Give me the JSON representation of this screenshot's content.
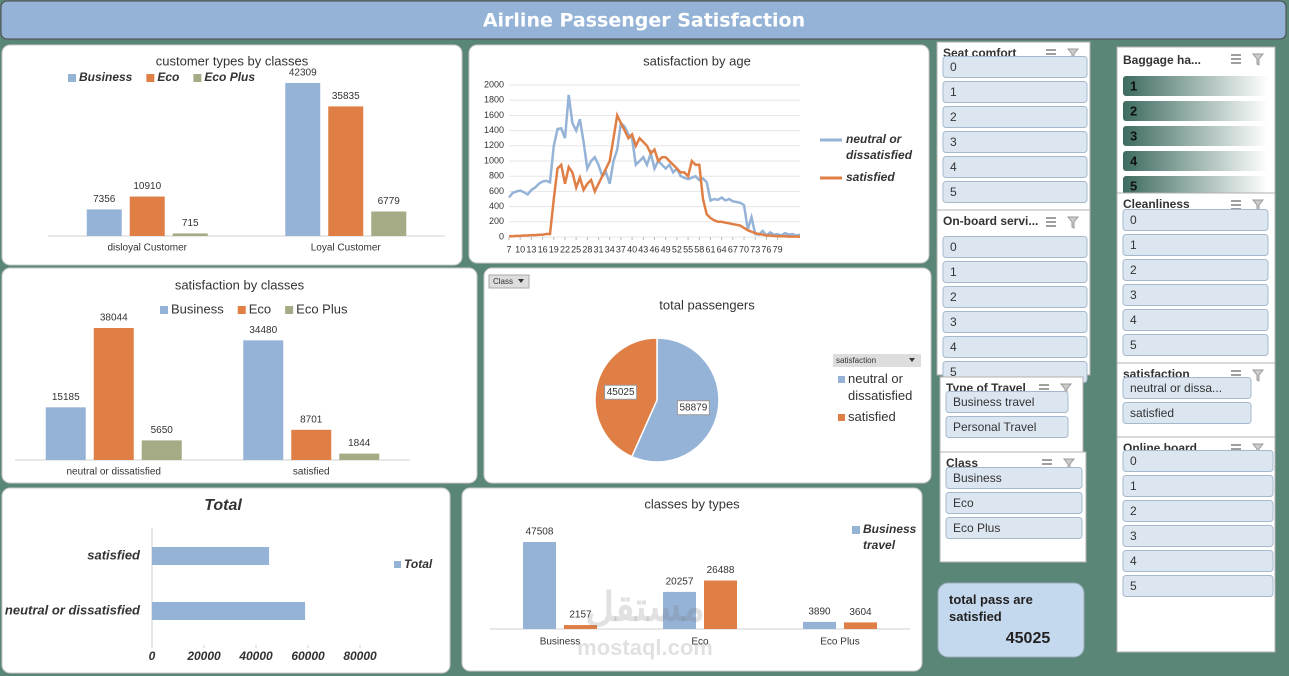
{
  "header": {
    "title": "Airline Passenger Satisfaction"
  },
  "chart_data": [
    {
      "type": "bar",
      "title": "customer  types by classes",
      "categories": [
        "disloyal Customer",
        "Loyal Customer"
      ],
      "series": [
        {
          "name": "Business",
          "color": "#95b3d7",
          "values": [
            7356,
            42309
          ]
        },
        {
          "name": "Eco",
          "color": "#e07f45",
          "values": [
            10910,
            35835
          ]
        },
        {
          "name": "Eco Plus",
          "color": "#a5ab84",
          "values": [
            715,
            6779
          ]
        }
      ]
    },
    {
      "type": "line",
      "title": "satisfaction by age",
      "x": [
        7,
        8,
        9,
        10,
        11,
        12,
        13,
        14,
        15,
        16,
        17,
        18,
        19,
        20,
        21,
        22,
        23,
        24,
        25,
        26,
        27,
        28,
        29,
        30,
        31,
        32,
        33,
        34,
        35,
        36,
        37,
        38,
        39,
        40,
        41,
        42,
        43,
        44,
        45,
        46,
        47,
        48,
        49,
        50,
        51,
        52,
        53,
        54,
        55,
        56,
        57,
        58,
        59,
        60,
        61,
        62,
        63,
        64,
        65,
        66,
        67,
        68,
        69,
        70,
        71,
        72,
        73,
        74,
        75,
        76,
        77,
        78,
        79,
        80,
        81,
        82,
        83,
        84,
        85
      ],
      "series": [
        {
          "name": "neutral or dissatisfied",
          "color": "#95b3d7",
          "values": [
            520,
            580,
            600,
            610,
            590,
            560,
            620,
            650,
            700,
            730,
            740,
            720,
            1200,
            1420,
            1430,
            1300,
            1870,
            1500,
            1400,
            1550,
            1250,
            900,
            1000,
            1050,
            950,
            800,
            850,
            700,
            1000,
            1150,
            1500,
            1450,
            1350,
            1300,
            950,
            1000,
            1050,
            950,
            1100,
            900,
            1000,
            950,
            900,
            950,
            850,
            900,
            800,
            780,
            760,
            780,
            800,
            750,
            770,
            720,
            480,
            500,
            490,
            520,
            480,
            500,
            470,
            460,
            450,
            420,
            100,
            260,
            40,
            30,
            80,
            20,
            60,
            30,
            40,
            20,
            50,
            30,
            40,
            20,
            30
          ]
        },
        {
          "name": "satisfied",
          "color": "#e07f45",
          "values": [
            10,
            10,
            15,
            15,
            20,
            20,
            25,
            25,
            30,
            30,
            40,
            40,
            500,
            900,
            950,
            700,
            920,
            850,
            650,
            780,
            620,
            700,
            750,
            600,
            700,
            800,
            900,
            1000,
            1300,
            1600,
            1500,
            1400,
            1300,
            1350,
            1200,
            1300,
            1250,
            1200,
            1100,
            1150,
            1000,
            1050,
            1050,
            1000,
            950,
            900,
            850,
            850,
            800,
            1000,
            950,
            950,
            500,
            300,
            250,
            220,
            200,
            200,
            190,
            180,
            170,
            160,
            150,
            120,
            90,
            70,
            50,
            40,
            30,
            20,
            20,
            15,
            10,
            10,
            10,
            5,
            5,
            5,
            5
          ]
        }
      ],
      "xlim": [
        7,
        85
      ],
      "ylim": [
        0,
        2000
      ],
      "xticks": [
        7,
        10,
        13,
        16,
        19,
        22,
        25,
        28,
        31,
        34,
        37,
        40,
        43,
        46,
        49,
        52,
        55,
        58,
        61,
        64,
        67,
        70,
        73,
        76,
        79
      ],
      "yticks": [
        0,
        200,
        400,
        600,
        800,
        1000,
        1200,
        1400,
        1600,
        1800,
        2000
      ],
      "grid": true
    },
    {
      "type": "bar",
      "title": "satisfaction by classes",
      "categories": [
        "neutral or dissatisfied",
        "satisfied"
      ],
      "series": [
        {
          "name": "Business",
          "color": "#95b3d7",
          "values": [
            15185,
            34480
          ]
        },
        {
          "name": "Eco",
          "color": "#e07f45",
          "values": [
            38044,
            8701
          ]
        },
        {
          "name": "Eco Plus",
          "color": "#a5ab84",
          "values": [
            5650,
            1844
          ]
        }
      ]
    },
    {
      "type": "pie",
      "title": "total passengers",
      "filter_label": "Class",
      "legend_title": "satisfaction",
      "categories": [
        "neutral or dissatisfied",
        "satisfied"
      ],
      "values": [
        58879,
        45025
      ],
      "colors": [
        "#95b3d7",
        "#e07f45"
      ]
    },
    {
      "type": "hbar",
      "title": "Total",
      "categories": [
        "satisfied",
        "neutral or dissatisfied"
      ],
      "series": [
        {
          "name": "Total",
          "color": "#95b3d7",
          "values": [
            45025,
            58879
          ]
        }
      ],
      "xlim": [
        0,
        80000
      ],
      "xticks": [
        0,
        20000,
        40000,
        60000,
        80000
      ]
    },
    {
      "type": "bar",
      "title": "classes by types",
      "categories": [
        "Business",
        "Eco",
        "Eco Plus"
      ],
      "series": [
        {
          "name": "Business travel",
          "color": "#95b3d7",
          "values": [
            47508,
            20257,
            3890
          ]
        },
        {
          "color": "#e07f45",
          "values": [
            2157,
            26488,
            3604
          ]
        }
      ]
    }
  ],
  "slicers": [
    {
      "title": "Seat comfort",
      "items": [
        "0",
        "1",
        "2",
        "3",
        "4",
        "5"
      ]
    },
    {
      "title": "Baggage ha...",
      "items": [
        "1",
        "2",
        "3",
        "4",
        "5"
      ]
    },
    {
      "title": "On-board servi...",
      "items": [
        "0",
        "1",
        "2",
        "3",
        "4",
        "5"
      ]
    },
    {
      "title": "Cleanliness",
      "items": [
        "0",
        "1",
        "2",
        "3",
        "4",
        "5"
      ]
    },
    {
      "title": "Type of Travel",
      "items": [
        "Business travel",
        "Personal Travel"
      ]
    },
    {
      "title": "satisfaction",
      "items": [
        "neutral or dissa...",
        "satisfied"
      ]
    },
    {
      "title": "Class",
      "items": [
        "Business",
        "Eco",
        "Eco Plus"
      ]
    },
    {
      "title": "Online board...",
      "items": [
        "0",
        "1",
        "2",
        "3",
        "4",
        "5"
      ]
    }
  ],
  "kpi": {
    "label": "total pass are satisfied",
    "value": 45025
  },
  "watermark": {
    "arabic": "مستقل",
    "latin": "mostaql.com"
  }
}
